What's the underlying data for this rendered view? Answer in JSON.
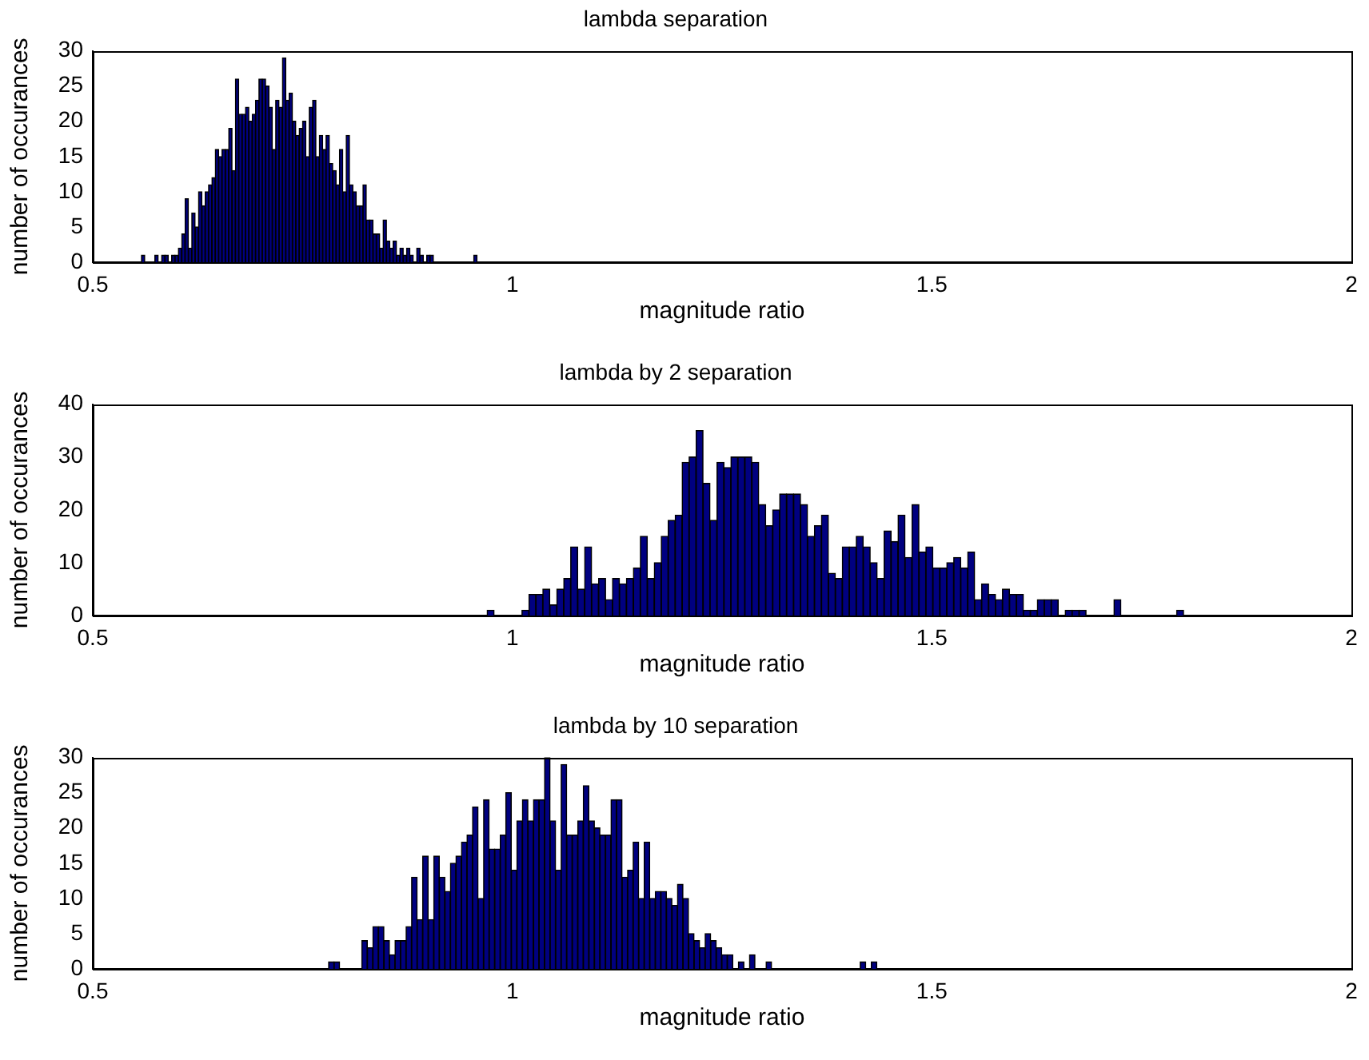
{
  "chart_data": [
    {
      "type": "histogram",
      "title": "lambda separation",
      "xlabel": "magnitude ratio",
      "ylabel": "number of occurances",
      "color": "#000080",
      "xlim": [
        0.5,
        2
      ],
      "xticks": [
        0.5,
        1,
        1.5,
        2
      ],
      "ylim": [
        0,
        30
      ],
      "yticks": [
        0,
        5,
        10,
        15,
        20,
        25,
        30
      ],
      "bins": [
        0.558,
        0.562,
        0.566,
        0.57,
        0.574,
        0.578,
        0.582,
        0.586,
        0.59,
        0.594,
        0.598,
        0.602,
        0.606,
        0.61,
        0.614,
        0.618,
        0.622,
        0.626,
        0.63,
        0.634,
        0.638,
        0.642,
        0.646,
        0.65,
        0.654,
        0.658,
        0.662,
        0.666,
        0.67,
        0.674,
        0.678,
        0.682,
        0.686,
        0.69,
        0.694,
        0.698,
        0.702,
        0.706,
        0.71,
        0.714,
        0.718,
        0.722,
        0.726,
        0.73,
        0.734,
        0.738,
        0.742,
        0.746,
        0.75,
        0.754,
        0.758,
        0.762,
        0.766,
        0.77,
        0.774,
        0.778,
        0.782,
        0.786,
        0.79,
        0.794,
        0.798,
        0.802,
        0.806,
        0.81,
        0.814,
        0.818,
        0.822,
        0.826,
        0.83,
        0.834,
        0.838,
        0.842,
        0.846,
        0.85,
        0.854,
        0.858,
        0.862,
        0.866,
        0.87,
        0.874,
        0.878,
        0.882,
        0.886,
        0.89,
        0.894,
        0.898,
        0.902,
        0.906,
        0.91,
        0.914,
        0.918,
        0.922,
        0.926,
        0.93,
        0.934,
        0.938,
        0.942,
        0.946,
        0.95,
        0.954,
        0.958
      ],
      "values": [
        1,
        0,
        0,
        0,
        1,
        0,
        1,
        1,
        0,
        1,
        1,
        2,
        4,
        9,
        2,
        7,
        5,
        10,
        8,
        10,
        11,
        12,
        16,
        15,
        16,
        16,
        19,
        13,
        26,
        21,
        21,
        22,
        20,
        21,
        23,
        26,
        26,
        25,
        22,
        16,
        23,
        22,
        29,
        23,
        24,
        20,
        18,
        19,
        20,
        15,
        22,
        23,
        15,
        18,
        16,
        18,
        14,
        13,
        11,
        16,
        10,
        18,
        11,
        10,
        8,
        8,
        11,
        6,
        6,
        4,
        4,
        2,
        6,
        3,
        2,
        3,
        1,
        2,
        1,
        2,
        1,
        0,
        2,
        1,
        0,
        1,
        1,
        0,
        0,
        0,
        0,
        0,
        0,
        0,
        0,
        0,
        0,
        0,
        0,
        1
      ]
    },
    {
      "type": "histogram",
      "title": "lambda by 2 separation",
      "xlabel": "magnitude ratio",
      "ylabel": "number of occurances",
      "color": "#000080",
      "xlim": [
        0.5,
        2
      ],
      "xticks": [
        0.5,
        1,
        1.5,
        2
      ],
      "ylim": [
        0,
        40
      ],
      "yticks": [
        0,
        10,
        20,
        30,
        40
      ],
      "bins": [
        0.97,
        0.9783,
        0.9866,
        0.9949,
        1.0032,
        1.0115,
        1.0198,
        1.0281,
        1.0364,
        1.0447,
        1.053,
        1.0613,
        1.0696,
        1.0779,
        1.0862,
        1.0945,
        1.1028,
        1.1111,
        1.1194,
        1.1277,
        1.136,
        1.1443,
        1.1526,
        1.1609,
        1.1692,
        1.1775,
        1.1858,
        1.1941,
        1.2024,
        1.2107,
        1.219,
        1.2273,
        1.2356,
        1.2439,
        1.2522,
        1.2605,
        1.2688,
        1.2771,
        1.2854,
        1.2937,
        1.302,
        1.3103,
        1.3186,
        1.3269,
        1.3352,
        1.3435,
        1.3518,
        1.3601,
        1.3684,
        1.3767,
        1.385,
        1.3933,
        1.4016,
        1.4099,
        1.4182,
        1.4265,
        1.4348,
        1.4431,
        1.4514,
        1.4597,
        1.468,
        1.4763,
        1.4846,
        1.4929,
        1.5012,
        1.5095,
        1.5178,
        1.5261,
        1.5344,
        1.5427,
        1.551,
        1.5593,
        1.5676,
        1.5759,
        1.5842,
        1.5925,
        1.6008,
        1.6091,
        1.6174,
        1.6257,
        1.634,
        1.6423,
        1.6506,
        1.6589,
        1.6672,
        1.6755,
        1.6838,
        1.6921,
        1.7004,
        1.7087,
        1.717,
        1.7253,
        1.7336,
        1.7419,
        1.7502,
        1.7585,
        1.7668,
        1.7751,
        1.7834,
        1.7917,
        1.8
      ],
      "values": [
        1,
        0,
        0,
        0,
        0,
        1,
        4,
        4,
        5,
        2,
        5,
        7,
        13,
        5,
        13,
        6,
        7,
        3,
        7,
        6,
        7,
        9,
        15,
        7,
        10,
        15,
        18,
        19,
        29,
        30,
        35,
        25,
        18,
        29,
        28,
        30,
        30,
        30,
        29,
        21,
        17,
        20,
        23,
        23,
        23,
        21,
        15,
        17,
        19,
        8,
        7,
        13,
        13,
        15,
        13,
        10,
        7,
        16,
        14,
        19,
        11,
        21,
        12,
        13,
        9,
        9,
        10,
        11,
        9,
        12,
        3,
        6,
        4,
        3,
        5,
        4,
        4,
        1,
        1,
        3,
        3,
        3,
        0,
        1,
        1,
        1,
        0,
        0,
        0,
        0,
        3,
        0,
        0,
        0,
        0,
        0,
        0,
        0,
        0,
        1
      ]
    },
    {
      "type": "histogram",
      "title": "lambda by 10 separation",
      "xlabel": "magnitude ratio",
      "ylabel": "number of occurances",
      "color": "#000080",
      "xlim": [
        0.5,
        2
      ],
      "xticks": [
        0.5,
        1,
        1.5,
        2
      ],
      "ylim": [
        0,
        30
      ],
      "yticks": [
        0,
        5,
        10,
        15,
        20,
        25,
        30
      ],
      "bins": [
        0.781,
        0.7876,
        0.7942,
        0.8008,
        0.8074,
        0.814,
        0.8206,
        0.8272,
        0.8338,
        0.8404,
        0.847,
        0.8536,
        0.8602,
        0.8668,
        0.8734,
        0.88,
        0.8866,
        0.8932,
        0.8998,
        0.9064,
        0.913,
        0.9196,
        0.9262,
        0.9328,
        0.9394,
        0.946,
        0.9526,
        0.9592,
        0.9658,
        0.9724,
        0.979,
        0.9856,
        0.9922,
        0.9988,
        1.0054,
        1.012,
        1.0186,
        1.0252,
        1.0318,
        1.0384,
        1.045,
        1.0516,
        1.0582,
        1.0648,
        1.0714,
        1.078,
        1.0846,
        1.0912,
        1.0978,
        1.1044,
        1.111,
        1.1176,
        1.1242,
        1.1308,
        1.1374,
        1.144,
        1.1506,
        1.1572,
        1.1638,
        1.1704,
        1.177,
        1.1836,
        1.1902,
        1.1968,
        1.2034,
        1.21,
        1.2166,
        1.2232,
        1.2298,
        1.2364,
        1.243,
        1.2496,
        1.2562,
        1.2628,
        1.2694,
        1.276,
        1.2826,
        1.2892,
        1.2958,
        1.3024,
        1.309,
        1.3156,
        1.3222,
        1.3288,
        1.3354,
        1.342,
        1.3486,
        1.3552,
        1.3618,
        1.3684,
        1.375,
        1.3816,
        1.3882,
        1.3948,
        1.4014,
        1.408,
        1.4146,
        1.4212,
        1.4278,
        1.4344,
        1.441
      ],
      "values": [
        1,
        1,
        0,
        0,
        0,
        0,
        4,
        3,
        6,
        6,
        4,
        2,
        4,
        4,
        6,
        13,
        7,
        16,
        7,
        16,
        13,
        11,
        15,
        16,
        18,
        19,
        23,
        10,
        24,
        17,
        17,
        19,
        25,
        14,
        21,
        24,
        21,
        24,
        24,
        30,
        21,
        14,
        29,
        19,
        19,
        21,
        26,
        21,
        20,
        19,
        19,
        24,
        24,
        13,
        14,
        18,
        10,
        18,
        10,
        11,
        11,
        10,
        9,
        12,
        10,
        5,
        4,
        3,
        5,
        4,
        3,
        2,
        2,
        0,
        1,
        0,
        2,
        0,
        0,
        1,
        0,
        0,
        0,
        0,
        0,
        0,
        0,
        0,
        0,
        0,
        0,
        0,
        0,
        0,
        0,
        0,
        1,
        0,
        1,
        0
      ]
    }
  ]
}
